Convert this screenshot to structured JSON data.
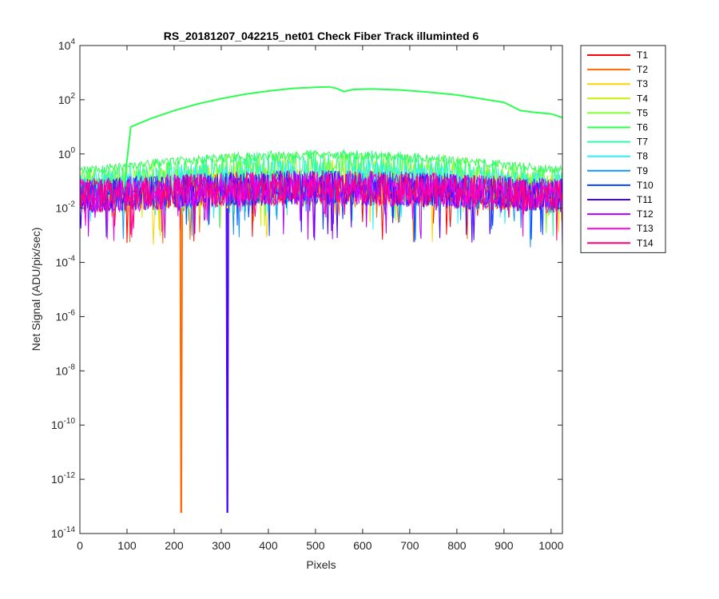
{
  "chart_data": {
    "type": "line",
    "title": "RS_20181207_042215_net01   Check Fiber     Track illuminted 6",
    "xlabel": "Pixels",
    "ylabel": "Net Signal (ADU/pix/sec)",
    "xlim": [
      0,
      1024
    ],
    "ylim": [
      1e-14,
      10000.0
    ],
    "yscale": "log",
    "xticks": [
      0,
      100,
      200,
      300,
      400,
      500,
      600,
      700,
      800,
      900,
      1000
    ],
    "yticks": [
      {
        "base": "10",
        "exp": "4",
        "value": 10000.0
      },
      {
        "base": "10",
        "exp": "2",
        "value": 100.0
      },
      {
        "base": "10",
        "exp": "0",
        "value": 1
      },
      {
        "base": "10",
        "exp": "-2",
        "value": 0.01
      },
      {
        "base": "10",
        "exp": "-4",
        "value": 0.0001
      },
      {
        "base": "10",
        "exp": "-6",
        "value": 1e-06
      },
      {
        "base": "10",
        "exp": "-8",
        "value": 1e-08
      },
      {
        "base": "10",
        "exp": "-10",
        "value": 1e-10
      },
      {
        "base": "10",
        "exp": "-12",
        "value": 1e-12
      },
      {
        "base": "10",
        "exp": "-14",
        "value": 1e-14
      }
    ],
    "legend_position": "outside-right-top",
    "grid": false,
    "series": [
      {
        "name": "T1",
        "color": "#ff0000"
      },
      {
        "name": "T2",
        "color": "#ff6a00"
      },
      {
        "name": "T3",
        "color": "#ffd400"
      },
      {
        "name": "T4",
        "color": "#c8f000"
      },
      {
        "name": "T5",
        "color": "#7fff2a"
      },
      {
        "name": "T6",
        "color": "#2bff50",
        "x": [
          95,
          108,
          150,
          200,
          250,
          300,
          350,
          400,
          450,
          500,
          530,
          545,
          560,
          580,
          620,
          680,
          740,
          800,
          850,
          900,
          935,
          960,
          1000,
          1024
        ],
        "y": [
          0.1,
          10,
          20,
          40,
          70,
          110,
          160,
          210,
          260,
          290,
          300,
          260,
          200,
          240,
          250,
          230,
          190,
          150,
          110,
          80,
          40,
          35,
          30,
          22
        ]
      },
      {
        "name": "T7",
        "color": "#2bffa0"
      },
      {
        "name": "T8",
        "color": "#2bf0ff"
      },
      {
        "name": "T9",
        "color": "#1496ff"
      },
      {
        "name": "T10",
        "color": "#0a46ff"
      },
      {
        "name": "T11",
        "color": "#4600ff"
      },
      {
        "name": "T12",
        "color": "#b400ff"
      },
      {
        "name": "T13",
        "color": "#ff00e6"
      },
      {
        "name": "T14",
        "color": "#ff0078"
      }
    ],
    "spikes": [
      {
        "series": "T2",
        "x": 215,
        "y": 6e-14
      },
      {
        "series": "T11",
        "x": 313,
        "y": 6e-14
      }
    ]
  }
}
